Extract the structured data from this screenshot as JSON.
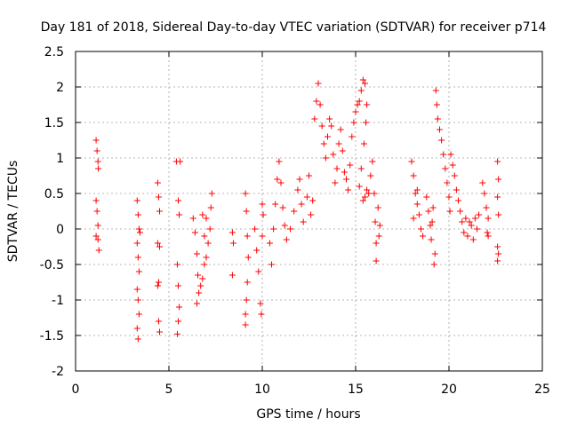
{
  "chart_data": {
    "type": "scatter",
    "title": "Day 181 of 2018, Sidereal Day-to-day VTEC variation (SDTVAR) for receiver p714",
    "xlabel": "GPS time / hours",
    "ylabel": "SDTVAR / TECUs",
    "xlim": [
      0,
      25
    ],
    "ylim": [
      -2,
      2.5
    ],
    "xticks": [
      0,
      5,
      10,
      15,
      20,
      25
    ],
    "yticks": [
      -2,
      -1.5,
      -1,
      -0.5,
      0,
      0.5,
      1,
      1.5,
      2,
      2.5
    ],
    "xtick_labels": [
      "0",
      "5",
      "10",
      "15",
      "20",
      "25"
    ],
    "ytick_labels": [
      "-2",
      "-1.5",
      "-1",
      "-0.5",
      "0",
      "0.5",
      "1",
      "1.5",
      "2",
      "2.5"
    ],
    "grid": true,
    "marker": "+",
    "color": "#ff0000",
    "series": [
      {
        "name": "p714",
        "points": [
          [
            1.1,
            1.25
          ],
          [
            1.15,
            1.1
          ],
          [
            1.2,
            0.95
          ],
          [
            1.22,
            0.85
          ],
          [
            1.1,
            0.4
          ],
          [
            1.15,
            0.25
          ],
          [
            1.2,
            0.05
          ],
          [
            1.1,
            -0.1
          ],
          [
            1.2,
            -0.15
          ],
          [
            1.25,
            -0.3
          ],
          [
            3.3,
            0.4
          ],
          [
            3.35,
            0.2
          ],
          [
            3.4,
            0.0
          ],
          [
            3.3,
            -0.2
          ],
          [
            3.35,
            -0.4
          ],
          [
            3.4,
            -0.6
          ],
          [
            3.3,
            -0.85
          ],
          [
            3.35,
            -1.0
          ],
          [
            3.4,
            -1.2
          ],
          [
            3.3,
            -1.4
          ],
          [
            3.35,
            -1.55
          ],
          [
            3.45,
            -0.05
          ],
          [
            4.4,
            0.65
          ],
          [
            4.45,
            0.45
          ],
          [
            4.5,
            0.25
          ],
          [
            4.4,
            -0.2
          ],
          [
            4.5,
            -0.25
          ],
          [
            4.45,
            -0.75
          ],
          [
            4.4,
            -0.8
          ],
          [
            4.45,
            -1.3
          ],
          [
            4.5,
            -1.45
          ],
          [
            5.4,
            0.95
          ],
          [
            5.6,
            0.95
          ],
          [
            5.5,
            0.4
          ],
          [
            5.55,
            0.2
          ],
          [
            5.45,
            -0.5
          ],
          [
            5.5,
            -0.8
          ],
          [
            5.55,
            -1.1
          ],
          [
            5.5,
            -1.3
          ],
          [
            5.45,
            -1.48
          ],
          [
            6.3,
            0.15
          ],
          [
            6.4,
            -0.05
          ],
          [
            6.5,
            -0.35
          ],
          [
            6.55,
            -0.65
          ],
          [
            6.6,
            -0.9
          ],
          [
            6.5,
            -1.05
          ],
          [
            6.7,
            -0.8
          ],
          [
            6.8,
            -0.7
          ],
          [
            6.9,
            -0.5
          ],
          [
            7.0,
            -0.4
          ],
          [
            7.1,
            -0.2
          ],
          [
            7.2,
            0.0
          ],
          [
            7.25,
            0.3
          ],
          [
            7.3,
            0.5
          ],
          [
            6.8,
            0.2
          ],
          [
            7.0,
            0.15
          ],
          [
            6.9,
            -0.1
          ],
          [
            8.4,
            -0.05
          ],
          [
            8.45,
            -0.2
          ],
          [
            8.4,
            -0.65
          ],
          [
            9.1,
            0.5
          ],
          [
            9.15,
            0.25
          ],
          [
            9.2,
            -0.1
          ],
          [
            9.25,
            -0.4
          ],
          [
            9.2,
            -0.75
          ],
          [
            9.15,
            -1.0
          ],
          [
            9.1,
            -1.2
          ],
          [
            9.1,
            -1.35
          ],
          [
            9.6,
            0.0
          ],
          [
            9.7,
            -0.3
          ],
          [
            9.8,
            -0.6
          ],
          [
            9.9,
            -1.05
          ],
          [
            9.95,
            -1.2
          ],
          [
            10.0,
            -0.1
          ],
          [
            10.05,
            0.2
          ],
          [
            10.0,
            0.35
          ],
          [
            10.4,
            -0.2
          ],
          [
            10.5,
            -0.5
          ],
          [
            10.6,
            0.0
          ],
          [
            10.7,
            0.35
          ],
          [
            10.8,
            0.7
          ],
          [
            10.9,
            0.95
          ],
          [
            11.0,
            0.65
          ],
          [
            11.1,
            0.3
          ],
          [
            11.2,
            0.05
          ],
          [
            11.3,
            -0.15
          ],
          [
            11.5,
            0.0
          ],
          [
            11.7,
            0.25
          ],
          [
            11.9,
            0.55
          ],
          [
            12.0,
            0.7
          ],
          [
            12.1,
            0.35
          ],
          [
            12.2,
            0.1
          ],
          [
            12.4,
            0.45
          ],
          [
            12.5,
            0.75
          ],
          [
            12.6,
            0.2
          ],
          [
            12.7,
            0.4
          ],
          [
            12.8,
            1.55
          ],
          [
            12.9,
            1.8
          ],
          [
            13.0,
            2.05
          ],
          [
            13.1,
            1.75
          ],
          [
            13.2,
            1.45
          ],
          [
            13.3,
            1.2
          ],
          [
            13.4,
            1.0
          ],
          [
            13.5,
            1.3
          ],
          [
            13.6,
            1.55
          ],
          [
            13.7,
            1.45
          ],
          [
            13.8,
            1.05
          ],
          [
            13.9,
            0.65
          ],
          [
            14.0,
            0.85
          ],
          [
            14.1,
            1.2
          ],
          [
            14.2,
            1.4
          ],
          [
            14.3,
            1.1
          ],
          [
            14.4,
            0.8
          ],
          [
            14.5,
            0.7
          ],
          [
            14.6,
            0.55
          ],
          [
            14.7,
            0.9
          ],
          [
            14.8,
            1.3
          ],
          [
            14.9,
            1.5
          ],
          [
            15.0,
            1.65
          ],
          [
            15.1,
            1.75
          ],
          [
            15.2,
            1.8
          ],
          [
            15.3,
            1.95
          ],
          [
            15.4,
            2.1
          ],
          [
            15.5,
            2.05
          ],
          [
            15.6,
            1.75
          ],
          [
            15.55,
            1.5
          ],
          [
            15.45,
            1.2
          ],
          [
            15.3,
            0.85
          ],
          [
            15.2,
            0.6
          ],
          [
            15.4,
            0.4
          ],
          [
            15.5,
            0.45
          ],
          [
            15.6,
            0.55
          ],
          [
            15.7,
            0.5
          ],
          [
            15.8,
            0.75
          ],
          [
            15.9,
            0.95
          ],
          [
            16.0,
            0.5
          ],
          [
            16.05,
            0.1
          ],
          [
            16.1,
            -0.2
          ],
          [
            16.1,
            -0.45
          ],
          [
            16.2,
            0.3
          ],
          [
            16.25,
            -0.1
          ],
          [
            16.3,
            0.05
          ],
          [
            18.0,
            0.95
          ],
          [
            18.1,
            0.75
          ],
          [
            18.2,
            0.5
          ],
          [
            18.3,
            0.35
          ],
          [
            18.4,
            0.2
          ],
          [
            18.5,
            0.0
          ],
          [
            18.6,
            -0.1
          ],
          [
            18.3,
            0.55
          ],
          [
            18.1,
            0.15
          ],
          [
            18.8,
            0.45
          ],
          [
            18.9,
            0.25
          ],
          [
            19.0,
            0.05
          ],
          [
            19.05,
            -0.15
          ],
          [
            19.1,
            0.1
          ],
          [
            19.2,
            -0.5
          ],
          [
            19.25,
            -0.35
          ],
          [
            19.15,
            0.3
          ],
          [
            19.3,
            1.95
          ],
          [
            19.35,
            1.75
          ],
          [
            19.4,
            1.55
          ],
          [
            19.5,
            1.4
          ],
          [
            19.6,
            1.25
          ],
          [
            19.7,
            1.05
          ],
          [
            19.8,
            0.85
          ],
          [
            19.9,
            0.65
          ],
          [
            20.0,
            0.45
          ],
          [
            20.05,
            0.25
          ],
          [
            20.1,
            1.05
          ],
          [
            20.2,
            0.9
          ],
          [
            20.3,
            0.75
          ],
          [
            20.4,
            0.55
          ],
          [
            20.5,
            0.4
          ],
          [
            20.6,
            0.25
          ],
          [
            20.7,
            0.1
          ],
          [
            20.8,
            -0.05
          ],
          [
            20.9,
            0.15
          ],
          [
            21.0,
            -0.1
          ],
          [
            21.1,
            0.1
          ],
          [
            21.2,
            0.05
          ],
          [
            21.3,
            -0.15
          ],
          [
            21.4,
            0.15
          ],
          [
            21.5,
            0.0
          ],
          [
            21.6,
            0.2
          ],
          [
            21.8,
            0.65
          ],
          [
            21.9,
            0.5
          ],
          [
            22.0,
            0.3
          ],
          [
            22.1,
            0.15
          ],
          [
            22.05,
            -0.05
          ],
          [
            22.1,
            -0.1
          ],
          [
            22.6,
            0.95
          ],
          [
            22.65,
            0.7
          ],
          [
            22.6,
            0.45
          ],
          [
            22.65,
            0.2
          ],
          [
            22.6,
            -0.25
          ],
          [
            22.65,
            -0.35
          ],
          [
            22.6,
            -0.45
          ]
        ]
      }
    ]
  }
}
